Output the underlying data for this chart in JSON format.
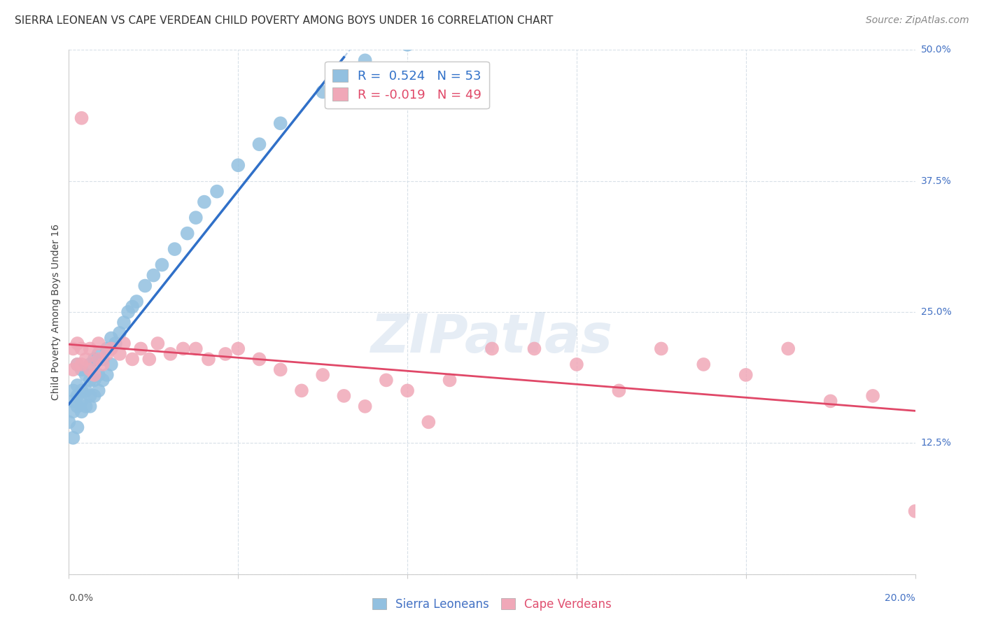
{
  "title": "SIERRA LEONEAN VS CAPE VERDEAN CHILD POVERTY AMONG BOYS UNDER 16 CORRELATION CHART",
  "source": "Source: ZipAtlas.com",
  "ylabel": "Child Poverty Among Boys Under 16",
  "xmin": 0.0,
  "xmax": 0.2,
  "ymin": 0.0,
  "ymax": 0.5,
  "yticks": [
    0.0,
    0.125,
    0.25,
    0.375,
    0.5
  ],
  "ytick_labels": [
    "",
    "12.5%",
    "25.0%",
    "37.5%",
    "50.0%"
  ],
  "xtick_positions": [
    0.0,
    0.04,
    0.08,
    0.12,
    0.16,
    0.2
  ],
  "R_blue": 0.524,
  "N_blue": 53,
  "R_pink": -0.019,
  "N_pink": 49,
  "blue_color": "#92c0e0",
  "pink_color": "#f0a8b8",
  "blue_line_color": "#3070c8",
  "pink_line_color": "#e04868",
  "dashed_line_color": "#b8cfe8",
  "background_color": "#ffffff",
  "grid_color": "#d8e0e8",
  "sierra_x": [
    0.0,
    0.001,
    0.001,
    0.001,
    0.001,
    0.002,
    0.002,
    0.002,
    0.002,
    0.002,
    0.003,
    0.003,
    0.003,
    0.003,
    0.004,
    0.004,
    0.004,
    0.005,
    0.005,
    0.005,
    0.005,
    0.006,
    0.006,
    0.006,
    0.007,
    0.007,
    0.007,
    0.008,
    0.008,
    0.009,
    0.009,
    0.01,
    0.01,
    0.011,
    0.012,
    0.013,
    0.014,
    0.015,
    0.016,
    0.018,
    0.02,
    0.022,
    0.025,
    0.028,
    0.03,
    0.032,
    0.035,
    0.04,
    0.045,
    0.05,
    0.06,
    0.07,
    0.08
  ],
  "sierra_y": [
    0.145,
    0.13,
    0.155,
    0.165,
    0.175,
    0.14,
    0.16,
    0.17,
    0.18,
    0.2,
    0.155,
    0.165,
    0.175,
    0.195,
    0.16,
    0.175,
    0.19,
    0.16,
    0.17,
    0.185,
    0.2,
    0.17,
    0.185,
    0.205,
    0.175,
    0.19,
    0.21,
    0.185,
    0.205,
    0.19,
    0.215,
    0.2,
    0.225,
    0.22,
    0.23,
    0.24,
    0.25,
    0.255,
    0.26,
    0.275,
    0.285,
    0.295,
    0.31,
    0.325,
    0.34,
    0.355,
    0.365,
    0.39,
    0.41,
    0.43,
    0.46,
    0.49,
    0.505
  ],
  "cape_x": [
    0.001,
    0.001,
    0.002,
    0.002,
    0.003,
    0.003,
    0.003,
    0.004,
    0.005,
    0.005,
    0.006,
    0.007,
    0.007,
    0.008,
    0.009,
    0.01,
    0.012,
    0.013,
    0.015,
    0.017,
    0.019,
    0.021,
    0.024,
    0.027,
    0.03,
    0.033,
    0.037,
    0.04,
    0.045,
    0.05,
    0.055,
    0.06,
    0.065,
    0.07,
    0.075,
    0.08,
    0.085,
    0.09,
    0.1,
    0.11,
    0.12,
    0.13,
    0.14,
    0.15,
    0.16,
    0.17,
    0.18,
    0.19,
    0.2
  ],
  "cape_y": [
    0.195,
    0.215,
    0.2,
    0.22,
    0.2,
    0.215,
    0.435,
    0.205,
    0.195,
    0.215,
    0.19,
    0.205,
    0.22,
    0.2,
    0.21,
    0.215,
    0.21,
    0.22,
    0.205,
    0.215,
    0.205,
    0.22,
    0.21,
    0.215,
    0.215,
    0.205,
    0.21,
    0.215,
    0.205,
    0.195,
    0.175,
    0.19,
    0.17,
    0.16,
    0.185,
    0.175,
    0.145,
    0.185,
    0.215,
    0.215,
    0.2,
    0.175,
    0.215,
    0.2,
    0.19,
    0.215,
    0.165,
    0.17,
    0.06
  ],
  "title_fontsize": 11,
  "axis_label_fontsize": 10,
  "tick_fontsize": 10,
  "legend_fontsize": 12,
  "source_fontsize": 10
}
